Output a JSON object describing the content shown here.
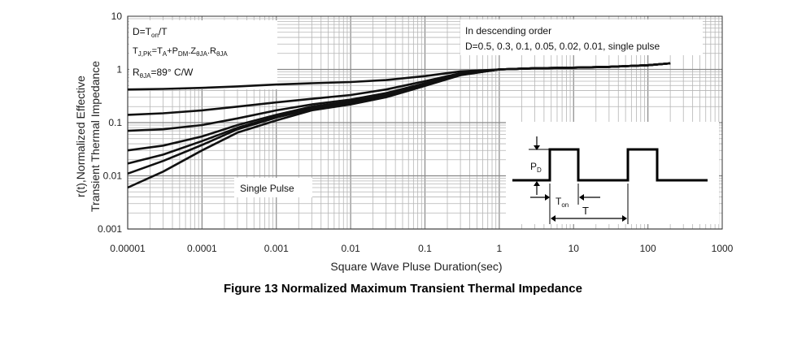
{
  "caption": "Figure 13 Normalized Maximum Transient Thermal Impedance",
  "chart_data": {
    "type": "line",
    "xscale": "log",
    "yscale": "log",
    "xlim": [
      1e-05,
      1000
    ],
    "ylim": [
      0.001,
      10
    ],
    "xticks": [
      "0.00001",
      "0.0001",
      "0.001",
      "0.01",
      "0.1",
      "1",
      "10",
      "100",
      "1000"
    ],
    "yticks": [
      "0.001",
      "0.01",
      "0.1",
      "1",
      "10"
    ],
    "xlabel": "Square Wave Pluse Duration(sec)",
    "ylabel_line1": "r(t),Normalized Effective",
    "ylabel_line2": "Transient Thermal Impedance",
    "grid": true,
    "x": [
      1e-05,
      3e-05,
      0.0001,
      0.0003,
      0.001,
      0.003,
      0.01,
      0.03,
      0.1,
      0.3,
      1,
      3,
      10,
      30,
      100,
      200
    ],
    "series": [
      {
        "values": [
          0.42,
          0.43,
          0.45,
          0.48,
          0.52,
          0.55,
          0.58,
          0.63,
          0.75,
          0.92,
          1.0,
          1.05,
          1.08,
          1.12,
          1.2,
          1.3
        ]
      },
      {
        "values": [
          0.14,
          0.15,
          0.17,
          0.2,
          0.24,
          0.28,
          0.33,
          0.42,
          0.6,
          0.85,
          1.0,
          1.05,
          1.08,
          1.12,
          1.2,
          1.3
        ]
      },
      {
        "values": [
          0.07,
          0.075,
          0.09,
          0.12,
          0.17,
          0.22,
          0.27,
          0.36,
          0.55,
          0.82,
          1.0,
          1.05,
          1.08,
          1.12,
          1.2,
          1.3
        ]
      },
      {
        "values": [
          0.03,
          0.037,
          0.055,
          0.09,
          0.14,
          0.2,
          0.25,
          0.33,
          0.52,
          0.8,
          1.0,
          1.05,
          1.08,
          1.12,
          1.2,
          1.3
        ]
      },
      {
        "values": [
          0.017,
          0.025,
          0.045,
          0.08,
          0.13,
          0.19,
          0.24,
          0.32,
          0.51,
          0.8,
          1.0,
          1.05,
          1.08,
          1.12,
          1.2,
          1.3
        ]
      },
      {
        "values": [
          0.011,
          0.019,
          0.038,
          0.075,
          0.125,
          0.18,
          0.23,
          0.31,
          0.5,
          0.79,
          1.0,
          1.05,
          1.08,
          1.12,
          1.2,
          1.3
        ]
      },
      {
        "values": [
          0.006,
          0.012,
          0.03,
          0.065,
          0.11,
          0.17,
          0.22,
          0.3,
          0.49,
          0.78,
          1.0,
          1.05,
          1.08,
          1.12,
          1.2,
          1.3
        ]
      }
    ],
    "annotations": {
      "box_left": {
        "line1_main": "D=T",
        "line1_sub": "on",
        "line1_tail": "/T",
        "line2_a": "T",
        "line2_a_sub": "J,PK",
        "line2_b": "=T",
        "line2_b_sub": "A",
        "line2_c": "+P",
        "line2_c_sub": "DM",
        "line2_d": ".Z",
        "line2_d_sub": "θJA",
        "line2_e": ".R",
        "line2_e_sub": "θJA",
        "line3_main": "R",
        "line3_sub": "θJA",
        "line3_tail": "=89° C/W"
      },
      "box_right_line1": "In descending order",
      "box_right_line2": "D=0.5, 0.3, 0.1, 0.05, 0.02, 0.01, single pulse",
      "single_pulse": "Single Pulse",
      "inset_pd_main": "P",
      "inset_pd_sub": "D",
      "inset_ton_main": "T",
      "inset_ton_sub": "on",
      "inset_t": "T"
    }
  }
}
